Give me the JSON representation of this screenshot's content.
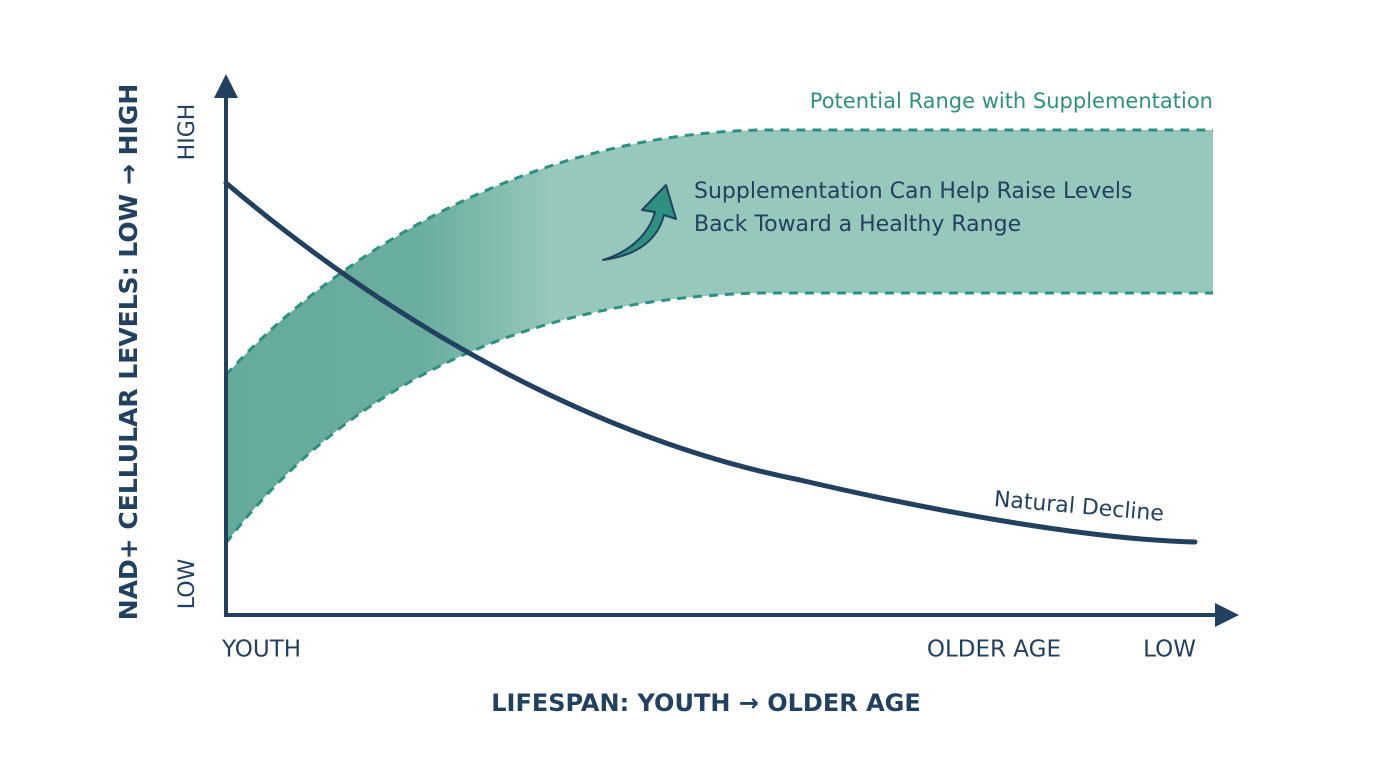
{
  "axes": {
    "y_title": "NAD+ CELLULAR LEVELS: LOW → HIGH",
    "y_high": "HIGH",
    "y_low": "LOW",
    "x_title": "LIFESPAN: YOUTH → OLDER AGE",
    "x_start": "YOUTH",
    "x_mid": "OLDER AGE",
    "x_end": "LOW"
  },
  "curves": {
    "range_label": "Potential Range with Supplementation",
    "decline_label": "Natural Decline"
  },
  "annotation": {
    "lines": [
      "Supplementation Can Help Raise Levels",
      "Back Toward a Healthy Range"
    ]
  }
}
